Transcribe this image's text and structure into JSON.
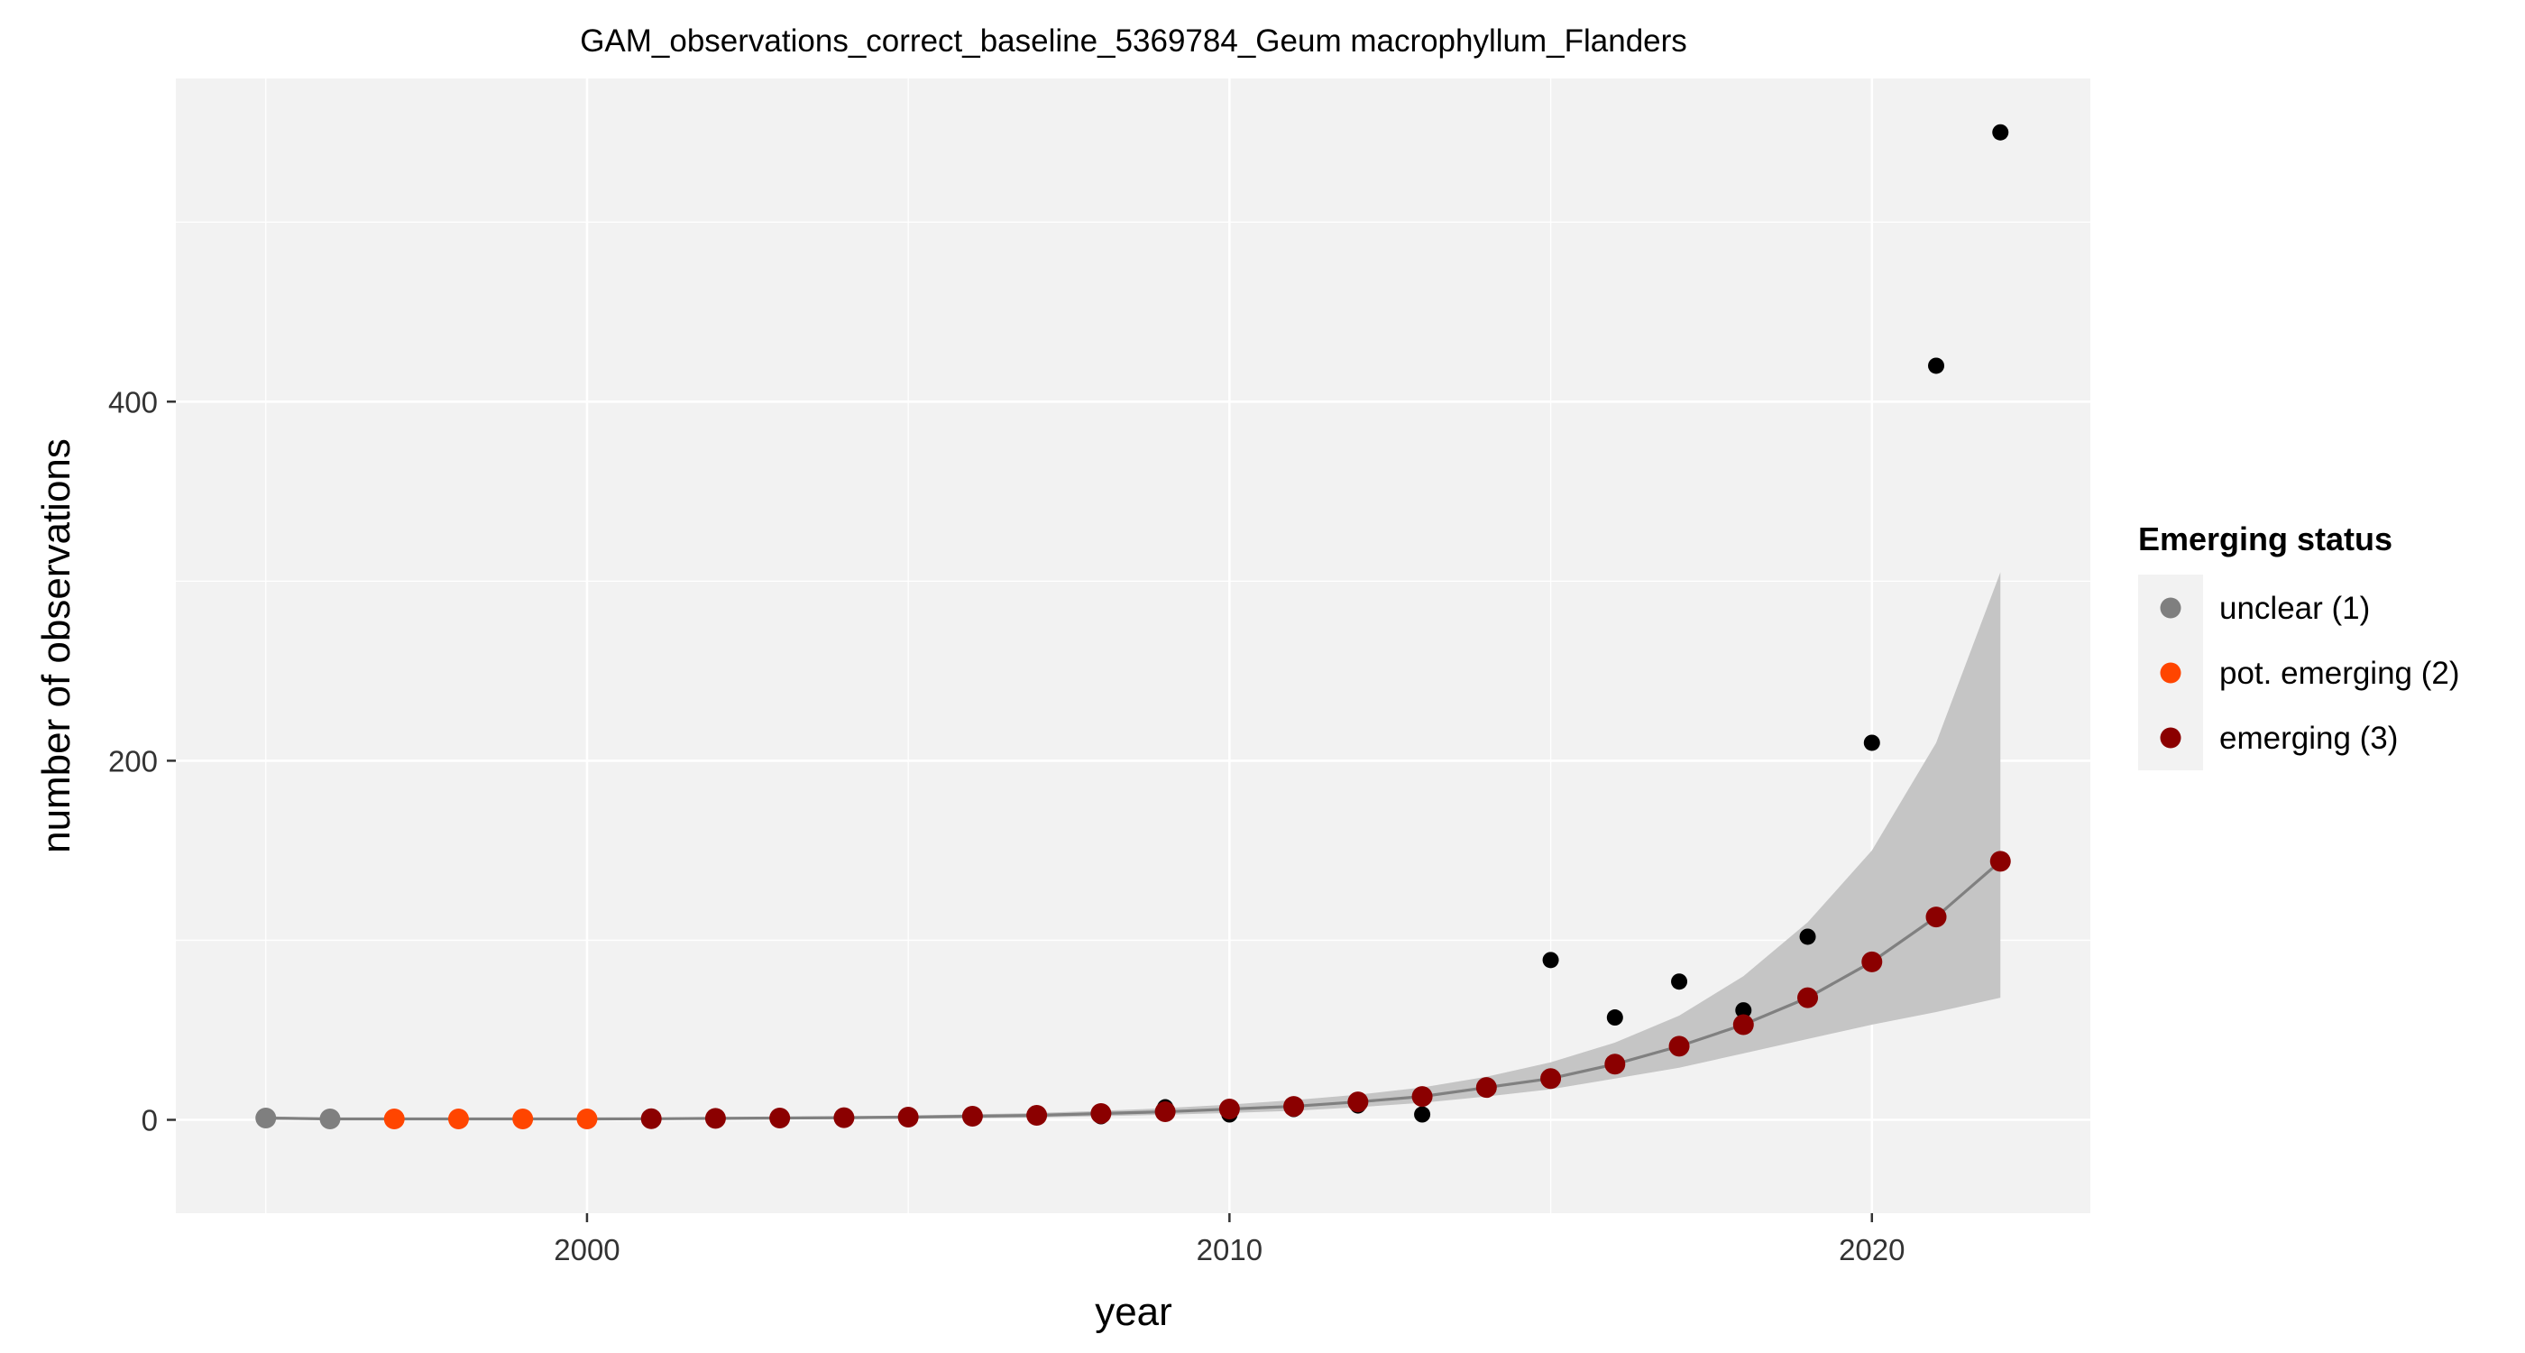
{
  "chart_data": {
    "type": "scatter",
    "title": "GAM_observations_correct_baseline_5369784_Geum macrophyllum_Flanders",
    "xlabel": "year",
    "ylabel": "number of observations",
    "xlim": [
      1993.6,
      2023.4
    ],
    "ylim": [
      -52,
      580
    ],
    "x_ticks": [
      2000,
      2010,
      2020
    ],
    "x_tick_labels": [
      "2000",
      "2010",
      "2020"
    ],
    "y_ticks": [
      0,
      200,
      400
    ],
    "y_tick_labels": [
      "0",
      "200",
      "400"
    ],
    "grid": true,
    "legend_position": "right",
    "legend": {
      "title": "Emerging status",
      "entries": [
        {
          "label": "unclear (1)",
          "color": "#7f7f7f"
        },
        {
          "label": "pot. emerging (2)",
          "color": "#ff4500"
        },
        {
          "label": "emerging (3)",
          "color": "#8b0000"
        }
      ]
    },
    "observed_series": {
      "color": "#000000",
      "points": [
        {
          "x": 1995,
          "y": 1
        },
        {
          "x": 1996,
          "y": 0
        },
        {
          "x": 1997,
          "y": 0
        },
        {
          "x": 1998,
          "y": 0
        },
        {
          "x": 1999,
          "y": 0
        },
        {
          "x": 2000,
          "y": 0
        },
        {
          "x": 2001,
          "y": 0
        },
        {
          "x": 2002,
          "y": 1
        },
        {
          "x": 2003,
          "y": 1
        },
        {
          "x": 2004,
          "y": 1
        },
        {
          "x": 2005,
          "y": 2
        },
        {
          "x": 2006,
          "y": 3
        },
        {
          "x": 2007,
          "y": 2
        },
        {
          "x": 2008,
          "y": 2
        },
        {
          "x": 2009,
          "y": 7
        },
        {
          "x": 2010,
          "y": 3
        },
        {
          "x": 2011,
          "y": 6
        },
        {
          "x": 2012,
          "y": 8
        },
        {
          "x": 2013,
          "y": 3
        },
        {
          "x": 2014,
          "y": 19
        },
        {
          "x": 2015,
          "y": 89
        },
        {
          "x": 2016,
          "y": 57
        },
        {
          "x": 2017,
          "y": 77
        },
        {
          "x": 2018,
          "y": 61
        },
        {
          "x": 2019,
          "y": 102
        },
        {
          "x": 2020,
          "y": 210
        },
        {
          "x": 2021,
          "y": 420
        },
        {
          "x": 2022,
          "y": 550
        }
      ]
    },
    "fitted_series": {
      "line_color": "#808080",
      "band_color": "#c5c5c5",
      "points": [
        {
          "x": 1995,
          "y": 1,
          "lower": 0,
          "upper": 2,
          "status": 1
        },
        {
          "x": 1996,
          "y": 0.5,
          "lower": 0,
          "upper": 1,
          "status": 1
        },
        {
          "x": 1997,
          "y": 0.5,
          "lower": 0,
          "upper": 1,
          "status": 2
        },
        {
          "x": 1998,
          "y": 0.5,
          "lower": 0,
          "upper": 1,
          "status": 2
        },
        {
          "x": 1999,
          "y": 0.5,
          "lower": 0,
          "upper": 1,
          "status": 2
        },
        {
          "x": 2000,
          "y": 0.5,
          "lower": 0,
          "upper": 1,
          "status": 2
        },
        {
          "x": 2001,
          "y": 0.6,
          "lower": 0,
          "upper": 1.2,
          "status": 3
        },
        {
          "x": 2002,
          "y": 0.8,
          "lower": 0.2,
          "upper": 1.4,
          "status": 3
        },
        {
          "x": 2003,
          "y": 1,
          "lower": 0.3,
          "upper": 1.7,
          "status": 3
        },
        {
          "x": 2004,
          "y": 1.2,
          "lower": 0.4,
          "upper": 2,
          "status": 3
        },
        {
          "x": 2005,
          "y": 1.5,
          "lower": 0.6,
          "upper": 2.4,
          "status": 3
        },
        {
          "x": 2006,
          "y": 2,
          "lower": 0.9,
          "upper": 3.1,
          "status": 3
        },
        {
          "x": 2007,
          "y": 2.5,
          "lower": 1.3,
          "upper": 3.8,
          "status": 3
        },
        {
          "x": 2008,
          "y": 3.5,
          "lower": 2,
          "upper": 5,
          "status": 3
        },
        {
          "x": 2009,
          "y": 4.5,
          "lower": 2.8,
          "upper": 6.5,
          "status": 3
        },
        {
          "x": 2010,
          "y": 6,
          "lower": 3.8,
          "upper": 8.5,
          "status": 3
        },
        {
          "x": 2011,
          "y": 7.5,
          "lower": 5,
          "upper": 11,
          "status": 3
        },
        {
          "x": 2012,
          "y": 10,
          "lower": 7,
          "upper": 14,
          "status": 3
        },
        {
          "x": 2013,
          "y": 13,
          "lower": 9.5,
          "upper": 18,
          "status": 3
        },
        {
          "x": 2014,
          "y": 18,
          "lower": 13,
          "upper": 24,
          "status": 3
        },
        {
          "x": 2015,
          "y": 23,
          "lower": 17,
          "upper": 32,
          "status": 3
        },
        {
          "x": 2016,
          "y": 31,
          "lower": 23,
          "upper": 43,
          "status": 3
        },
        {
          "x": 2017,
          "y": 41,
          "lower": 29,
          "upper": 58,
          "status": 3
        },
        {
          "x": 2018,
          "y": 53,
          "lower": 37,
          "upper": 80,
          "status": 3
        },
        {
          "x": 2019,
          "y": 68,
          "lower": 45,
          "upper": 110,
          "status": 3
        },
        {
          "x": 2020,
          "y": 88,
          "lower": 53,
          "upper": 150,
          "status": 3
        },
        {
          "x": 2021,
          "y": 113,
          "lower": 60,
          "upper": 210,
          "status": 3
        },
        {
          "x": 2022,
          "y": 144,
          "lower": 68,
          "upper": 305,
          "status": 3
        }
      ]
    }
  }
}
